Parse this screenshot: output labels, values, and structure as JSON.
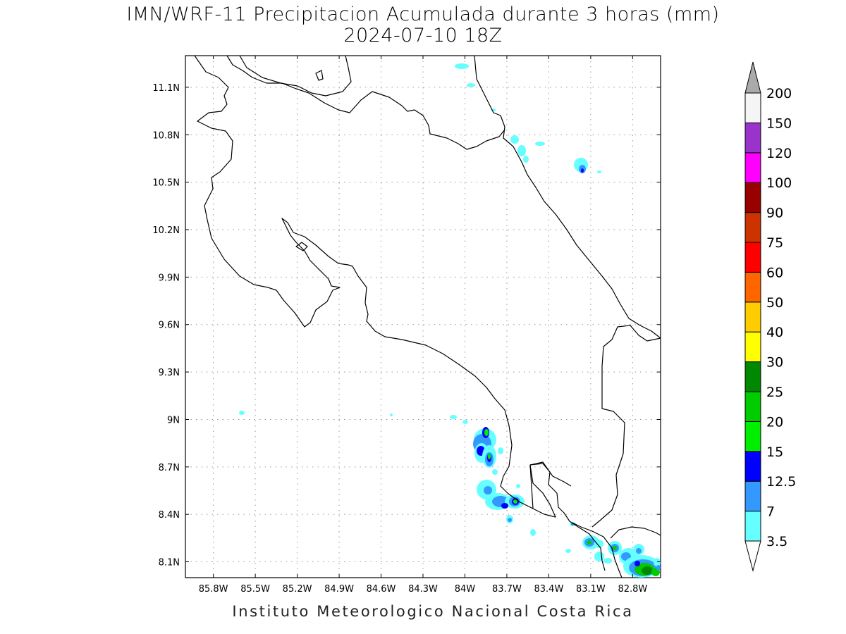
{
  "title": "IMN/WRF-11 Precipitacion Acumulada durante 3 horas (mm)",
  "subtitle": "2024-07-10 18Z",
  "footer": "Instituto Meteorologico Nacional Costa Rica",
  "map": {
    "lon_range": [
      -86.0,
      -82.6
    ],
    "lat_range": [
      8.0,
      11.3
    ],
    "lon_ticks": [
      "85.8W",
      "85.5W",
      "85.2W",
      "84.9W",
      "84.6W",
      "84.3W",
      "84W",
      "83.7W",
      "83.4W",
      "83.1W",
      "82.8W"
    ],
    "lat_ticks": [
      "11.1N",
      "10.8N",
      "10.5N",
      "10.2N",
      "9.9N",
      "9.6N",
      "9.3N",
      "9N",
      "8.7N",
      "8.4N",
      "8.1N"
    ],
    "grid": true
  },
  "colorbar": {
    "labels": [
      "3.5",
      "7",
      "12.5",
      "15",
      "20",
      "25",
      "30",
      "40",
      "50",
      "60",
      "75",
      "90",
      "100",
      "120",
      "150",
      "200"
    ],
    "colors": [
      "#66ffff",
      "#3399ff",
      "#0000ff",
      "#00ee00",
      "#00cc00",
      "#008800",
      "#ffff00",
      "#ffcc00",
      "#ff6600",
      "#ff0000",
      "#cc3300",
      "#990000",
      "#ff00ff",
      "#9933cc",
      "#f5f5f5"
    ],
    "top_arrow_color": "#aaaaaa",
    "bottom_arrow_color": "#ffffff"
  }
}
